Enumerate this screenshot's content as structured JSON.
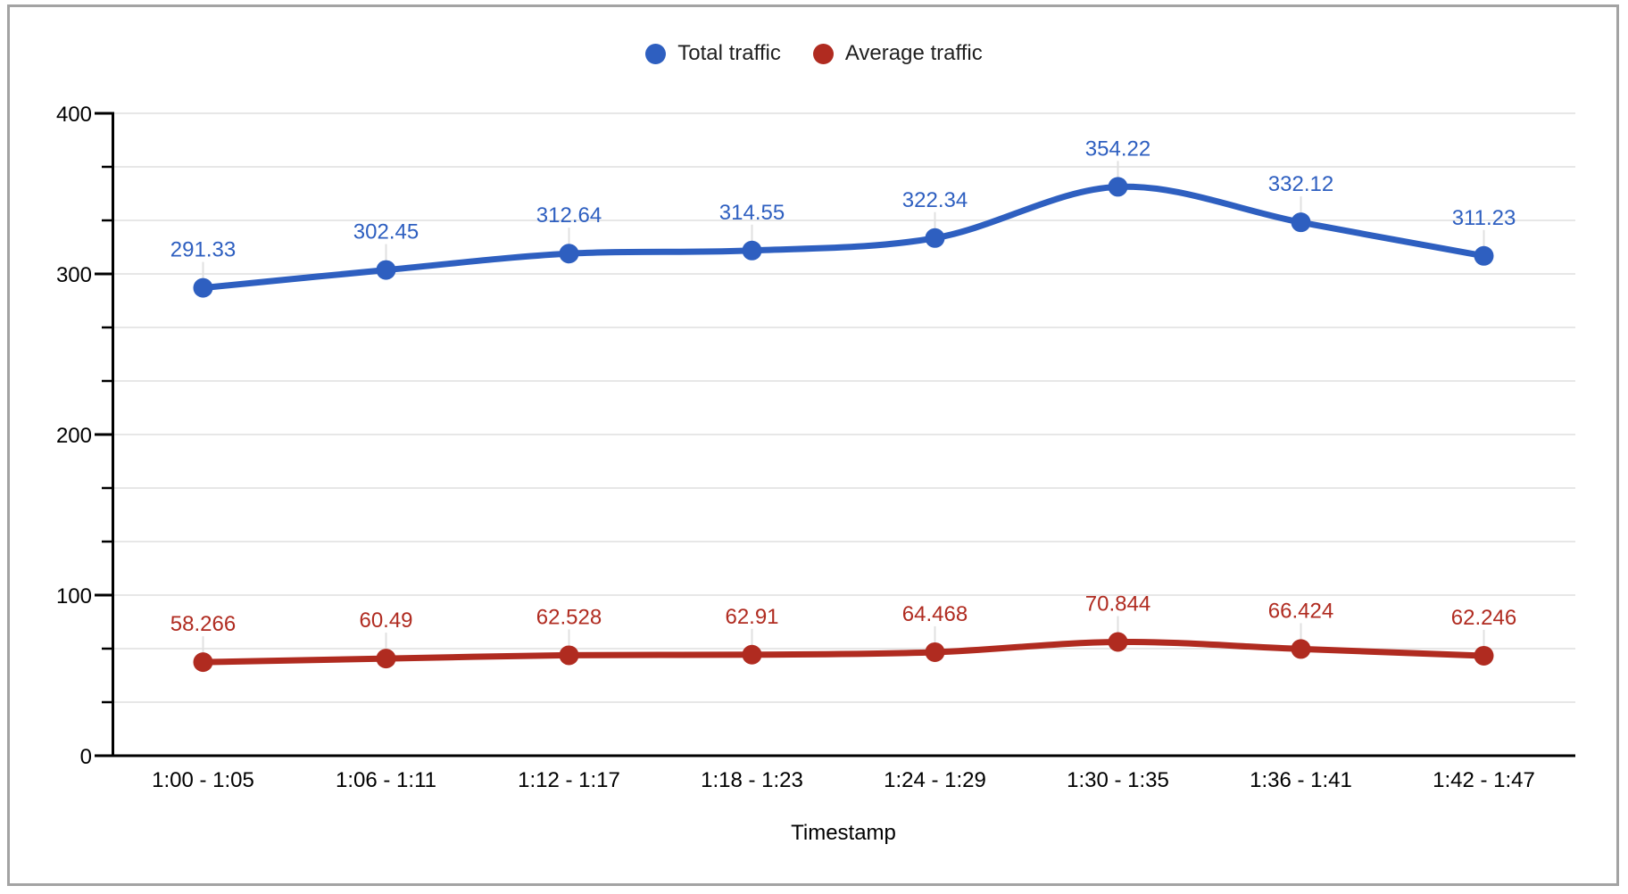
{
  "frame": {
    "border_color": "#a3a3a3",
    "background": "#ffffff"
  },
  "legend": {
    "position": "top-center",
    "items": [
      {
        "label": "Total traffic",
        "color": "#2e5fc0"
      },
      {
        "label": "Average traffic",
        "color": "#b02b20"
      }
    ]
  },
  "chart_data": {
    "type": "line",
    "smooth": true,
    "title": "",
    "xlabel": "Timestamp",
    "ylabel": "",
    "categories": [
      "1:00 - 1:05",
      "1:06 - 1:11",
      "1:12 - 1:17",
      "1:18 - 1:23",
      "1:24 - 1:29",
      "1:30 - 1:35",
      "1:36 - 1:41",
      "1:42 - 1:47"
    ],
    "series": [
      {
        "name": "Total traffic",
        "color": "#2e5fc0",
        "values": [
          291.33,
          302.45,
          312.64,
          314.55,
          322.34,
          354.22,
          332.12,
          311.23
        ]
      },
      {
        "name": "Average traffic",
        "color": "#b02b20",
        "values": [
          58.266,
          60.49,
          62.528,
          62.91,
          64.468,
          70.844,
          66.424,
          62.246
        ]
      }
    ],
    "ylim": [
      0,
      400
    ],
    "y_major_ticks": [
      0,
      100,
      200,
      300,
      400
    ],
    "y_minor_divisions_per_major": 3,
    "grid": true,
    "data_labels": true,
    "legend_position": "top"
  },
  "style_colors": {
    "gridline": "#e7e7e7",
    "axis": "#000000",
    "tick_label": "#000000",
    "leader_line": "#e0e0e0"
  }
}
